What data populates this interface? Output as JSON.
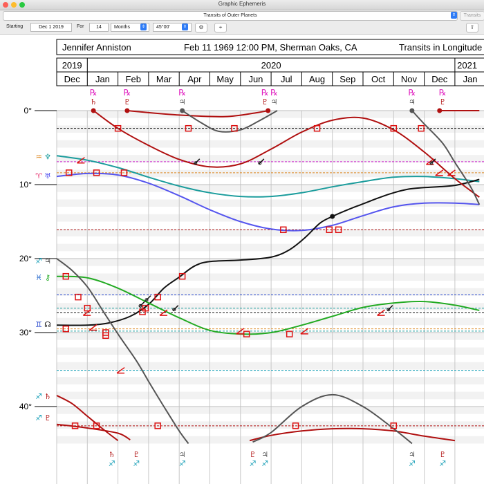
{
  "window": {
    "title": "Graphic Ephemeris",
    "selector_value": "Transits of Outer Planets",
    "transits_tab": "Transits"
  },
  "toolbar": {
    "starting_label": "Starting",
    "starting_value": "Dec 1 2019",
    "for_label": "For",
    "for_value": "14",
    "unit_value": "Months",
    "harmonic_value": "45°00'",
    "gear_icon": "gear-icon",
    "pin_icon": "location-pin-icon",
    "share_icon": "share-icon"
  },
  "header": {
    "name": "Jennifer Anniston",
    "birth": "Feb 11 1969 12:00 PM, Sherman Oaks, CA",
    "mode": "Transits in Longitude",
    "years": [
      "2019",
      "2020",
      "2021"
    ],
    "months": [
      "Dec",
      "Jan",
      "Feb",
      "Mar",
      "Apr",
      "May",
      "Jun",
      "Jul",
      "Aug",
      "Sep",
      "Oct",
      "Nov",
      "Dec",
      "Jan"
    ]
  },
  "chart_data": {
    "type": "line",
    "x": "months from Dec 1 2019",
    "xlim": [
      0,
      13.8
    ],
    "ylim": [
      0,
      45
    ],
    "y_ticks": [
      "0°",
      "10°",
      "20°",
      "30°",
      "40°"
    ],
    "y_tick_values": [
      0,
      10,
      20,
      30,
      40
    ],
    "colors": {
      "saturn": "#b01010",
      "pluto": "#b01010",
      "jupiter": "#555555",
      "node": "#111111",
      "neptune": "#1a9c9c",
      "uranus": "#5555ee",
      "chiron": "#22aa22",
      "aspect": "#dd1111",
      "sign_fire": "#e8417a",
      "sign_water": "#2266cc",
      "sign_earth": "#1aa0b8",
      "sign_air": "#dd8822",
      "rx_glyph": "#e020c0"
    },
    "left_labels": [
      {
        "y": 6.2,
        "sign": "♒",
        "planet": "♆",
        "sign_color": "#dd8822",
        "planet_color": "#1a9c9c"
      },
      {
        "y": 8.8,
        "sign": "♈",
        "planet": "♅",
        "sign_color": "#e8417a",
        "planet_color": "#5555ee"
      },
      {
        "y": 20.3,
        "sign": "♐",
        "planet": "♃",
        "sign_color": "#1aa0b8",
        "planet_color": "#555555"
      },
      {
        "y": 22.5,
        "sign": "♓",
        "planet": "⚷",
        "sign_color": "#2266cc",
        "planet_color": "#22aa22"
      },
      {
        "y": 28.9,
        "sign": "♊",
        "planet": "☊",
        "sign_color": "#2244cc",
        "planet_color": "#111111"
      },
      {
        "y": 38.6,
        "sign": "♐",
        "planet": "♄",
        "sign_color": "#1aa0b8",
        "planet_color": "#b01010"
      },
      {
        "y": 41.5,
        "sign": "♐",
        "planet": "♇",
        "sign_color": "#1aa0b8",
        "planet_color": "#b01010"
      }
    ],
    "natal_lines": [
      {
        "y": 2.4,
        "color": "#111111"
      },
      {
        "y": 6.9,
        "color": "#cc22cc"
      },
      {
        "y": 8.4,
        "color": "#dd8822"
      },
      {
        "y": 16.1,
        "color": "#b01010"
      },
      {
        "y": 24.9,
        "color": "#2244cc"
      },
      {
        "y": 26.7,
        "color": "#1a9c9c"
      },
      {
        "y": 27.3,
        "color": "#111111"
      },
      {
        "y": 29.5,
        "color": "#dd8822"
      },
      {
        "y": 29.8,
        "color": "#1a9c9c"
      },
      {
        "y": 35.1,
        "color": "#1aa0b8"
      },
      {
        "y": 42.6,
        "color": "#b01010"
      }
    ],
    "series": [
      {
        "name": "♆",
        "color": "#1a9c9c",
        "width": 2,
        "points": [
          [
            0,
            6.1
          ],
          [
            1,
            6.7
          ],
          [
            2,
            7.7
          ],
          [
            3,
            9.0
          ],
          [
            4,
            10.2
          ],
          [
            5,
            11.1
          ],
          [
            6,
            11.6
          ],
          [
            7,
            11.6
          ],
          [
            8,
            11.1
          ],
          [
            9,
            10.3
          ],
          [
            10,
            9.6
          ],
          [
            11,
            9.0
          ],
          [
            12,
            8.9
          ],
          [
            13,
            9.2
          ],
          [
            13.8,
            9.6
          ]
        ]
      },
      {
        "name": "♅",
        "color": "#5555ee",
        "width": 2,
        "points": [
          [
            0,
            8.9
          ],
          [
            1,
            8.5
          ],
          [
            2,
            8.7
          ],
          [
            3,
            9.8
          ],
          [
            4,
            11.5
          ],
          [
            5,
            13.4
          ],
          [
            6,
            15.0
          ],
          [
            7,
            16.0
          ],
          [
            8,
            16.2
          ],
          [
            9,
            15.5
          ],
          [
            10,
            14.2
          ],
          [
            11,
            13.0
          ],
          [
            12,
            12.5
          ],
          [
            13,
            12.5
          ],
          [
            13.8,
            12.7
          ]
        ]
      },
      {
        "name": "☊",
        "color": "#111111",
        "width": 2,
        "points": [
          [
            0,
            29.0
          ],
          [
            1,
            29.0
          ],
          [
            1.7,
            28.7
          ],
          [
            2.4,
            27.8
          ],
          [
            3,
            26.2
          ],
          [
            3.5,
            24.0
          ],
          [
            4,
            22.5
          ],
          [
            4.5,
            21.0
          ],
          [
            5,
            20.4
          ],
          [
            6,
            20.2
          ],
          [
            7,
            19.8
          ],
          [
            7.6,
            18.8
          ],
          [
            8.1,
            17.2
          ],
          [
            8.6,
            15.2
          ],
          [
            9,
            14.3
          ],
          [
            9.5,
            13.4
          ],
          [
            10,
            12.6
          ],
          [
            10.5,
            11.8
          ],
          [
            11,
            11.1
          ],
          [
            11.5,
            10.6
          ],
          [
            12,
            10.4
          ],
          [
            13,
            10.1
          ],
          [
            13.8,
            9.3
          ]
        ]
      },
      {
        "name": "⚷",
        "color": "#22aa22",
        "width": 2,
        "points": [
          [
            0,
            22.4
          ],
          [
            1,
            22.6
          ],
          [
            2,
            24.0
          ],
          [
            3,
            26.0
          ],
          [
            4,
            28.0
          ],
          [
            5,
            29.7
          ],
          [
            6,
            30.2
          ],
          [
            7,
            30.0
          ],
          [
            8,
            29.0
          ],
          [
            9,
            27.8
          ],
          [
            10,
            26.6
          ],
          [
            11,
            26.0
          ],
          [
            12,
            25.8
          ],
          [
            13,
            26.3
          ],
          [
            13.8,
            27.0
          ]
        ]
      },
      {
        "name": "♇",
        "color": "#b01010",
        "width": 2,
        "points": [
          [
            0,
            42.4
          ],
          [
            1,
            42.9
          ],
          [
            2,
            43.6
          ],
          [
            2.4,
            44.5
          ]
        ]
      },
      {
        "name": "♇",
        "color": "#b01010",
        "width": 2,
        "points": [
          [
            6.3,
            44.6
          ],
          [
            7,
            43.9
          ],
          [
            8,
            43.3
          ],
          [
            9,
            43.0
          ],
          [
            10,
            43.0
          ],
          [
            11,
            43.3
          ],
          [
            12,
            44.0
          ],
          [
            13,
            44.6
          ]
        ]
      },
      {
        "name": "♄",
        "color": "#b01010",
        "width": 2,
        "points": [
          [
            0,
            38.5
          ],
          [
            0.5,
            39.6
          ],
          [
            1,
            41.3
          ],
          [
            1.5,
            43.0
          ],
          [
            2.0,
            44.6
          ]
        ]
      },
      {
        "name": "♄",
        "color": "#b01010",
        "width": 2,
        "points": [
          [
            1.2,
            0.0
          ],
          [
            2,
            2.4
          ],
          [
            3,
            4.7
          ],
          [
            4,
            6.6
          ],
          [
            5,
            7.6
          ],
          [
            6,
            7.2
          ],
          [
            7,
            5.2
          ],
          [
            8,
            2.9
          ],
          [
            9,
            1.3
          ],
          [
            10,
            1.0
          ],
          [
            11,
            2.6
          ],
          [
            12,
            5.6
          ],
          [
            13,
            9.2
          ],
          [
            13.8,
            11.7
          ]
        ]
      },
      {
        "name": "♇",
        "color": "#b01010",
        "width": 2,
        "points": [
          [
            2.3,
            0.0
          ],
          [
            4,
            0.6
          ],
          [
            5.5,
            0.8
          ],
          [
            6.5,
            0.3
          ],
          [
            6.9,
            0.0
          ]
        ]
      },
      {
        "name": "♇",
        "color": "#b01010",
        "width": 2,
        "points": [
          [
            12.5,
            0.0
          ],
          [
            13,
            0.0
          ],
          [
            13.8,
            0.0
          ]
        ]
      },
      {
        "name": "♃",
        "color": "#555555",
        "width": 2,
        "points": [
          [
            4.1,
            0.0
          ],
          [
            4.7,
            1.6
          ],
          [
            5.3,
            2.8
          ],
          [
            6,
            2.6
          ],
          [
            6.6,
            1.4
          ],
          [
            7.2,
            0.0
          ]
        ]
      },
      {
        "name": "♃",
        "color": "#555555",
        "width": 2,
        "points": [
          [
            0,
            20.0
          ],
          [
            0.5,
            21.6
          ],
          [
            1,
            23.8
          ],
          [
            1.5,
            27.0
          ],
          [
            2,
            30.2
          ],
          [
            2.6,
            33.8
          ],
          [
            3,
            36.6
          ],
          [
            3.5,
            40.0
          ],
          [
            4,
            43.3
          ],
          [
            4.3,
            45.0
          ]
        ]
      },
      {
        "name": "♃",
        "color": "#555555",
        "width": 2,
        "points": [
          [
            6.4,
            44.8
          ],
          [
            7,
            43.5
          ],
          [
            8,
            40.0
          ],
          [
            9,
            38.4
          ],
          [
            10,
            40.0
          ],
          [
            11,
            43.0
          ],
          [
            11.6,
            45.0
          ]
        ]
      },
      {
        "name": "♃",
        "color": "#555555",
        "width": 2,
        "points": [
          [
            11.6,
            0.0
          ],
          [
            12,
            1.8
          ],
          [
            12.6,
            4.4
          ],
          [
            13,
            7.0
          ],
          [
            13.5,
            10.2
          ],
          [
            13.8,
            12.7
          ]
        ]
      }
    ],
    "markers": [
      {
        "x": 1.2,
        "y": 0,
        "kind": "dot",
        "color": "#b01010"
      },
      {
        "x": 2.3,
        "y": 0,
        "kind": "dot",
        "color": "#b01010"
      },
      {
        "x": 4.1,
        "y": 0,
        "kind": "dot",
        "color": "#555555"
      },
      {
        "x": 6.9,
        "y": 0,
        "kind": "dot",
        "color": "#b01010"
      },
      {
        "x": 11.6,
        "y": 0,
        "kind": "dot",
        "color": "#555555"
      },
      {
        "x": 12.5,
        "y": 0,
        "kind": "dot",
        "color": "#b01010"
      },
      {
        "x": 9.0,
        "y": 14.3,
        "kind": "dot",
        "color": "#111111"
      },
      {
        "x": 2,
        "y": 2.4,
        "kind": "square"
      },
      {
        "x": 4.3,
        "y": 2.4,
        "kind": "square"
      },
      {
        "x": 5.8,
        "y": 2.4,
        "kind": "square"
      },
      {
        "x": 8.5,
        "y": 2.4,
        "kind": "square"
      },
      {
        "x": 11,
        "y": 2.4,
        "kind": "square"
      },
      {
        "x": 11.9,
        "y": 2.4,
        "kind": "square"
      },
      {
        "x": 0.4,
        "y": 8.4,
        "kind": "square"
      },
      {
        "x": 1.3,
        "y": 8.4,
        "kind": "square"
      },
      {
        "x": 2.2,
        "y": 8.4,
        "kind": "square"
      },
      {
        "x": 7.4,
        "y": 16.1,
        "kind": "square"
      },
      {
        "x": 8.9,
        "y": 16.1,
        "kind": "square"
      },
      {
        "x": 9.2,
        "y": 16.1,
        "kind": "square"
      },
      {
        "x": 0.3,
        "y": 22.4,
        "kind": "square"
      },
      {
        "x": 4.1,
        "y": 22.4,
        "kind": "square"
      },
      {
        "x": 0.7,
        "y": 25.2,
        "kind": "square"
      },
      {
        "x": 3.3,
        "y": 25.2,
        "kind": "square"
      },
      {
        "x": 1.0,
        "y": 26.7,
        "kind": "square"
      },
      {
        "x": 2.9,
        "y": 26.7,
        "kind": "square"
      },
      {
        "x": 2.8,
        "y": 27.2,
        "kind": "square"
      },
      {
        "x": 0.3,
        "y": 29.5,
        "kind": "square"
      },
      {
        "x": 1.6,
        "y": 30.0,
        "kind": "square"
      },
      {
        "x": 1.6,
        "y": 30.4,
        "kind": "square"
      },
      {
        "x": 6.2,
        "y": 30.2,
        "kind": "square"
      },
      {
        "x": 7.6,
        "y": 30.2,
        "kind": "square"
      },
      {
        "x": 0.6,
        "y": 42.6,
        "kind": "square"
      },
      {
        "x": 1.3,
        "y": 42.6,
        "kind": "square"
      },
      {
        "x": 3.3,
        "y": 42.6,
        "kind": "square"
      },
      {
        "x": 7.8,
        "y": 42.6,
        "kind": "square"
      },
      {
        "x": 11.0,
        "y": 42.6,
        "kind": "square"
      },
      {
        "x": 0.8,
        "y": 6.7,
        "kind": "semisq"
      },
      {
        "x": 1.2,
        "y": 29.3,
        "kind": "semisq"
      },
      {
        "x": 1.0,
        "y": 27.3,
        "kind": "semisq"
      },
      {
        "x": 2.1,
        "y": 35.1,
        "kind": "semisq"
      },
      {
        "x": 3.5,
        "y": 27.3,
        "kind": "semisq"
      },
      {
        "x": 6.0,
        "y": 29.8,
        "kind": "semisq"
      },
      {
        "x": 8.1,
        "y": 29.8,
        "kind": "semisq"
      },
      {
        "x": 10.6,
        "y": 27.3,
        "kind": "semisq"
      },
      {
        "x": 12.5,
        "y": 8.4,
        "kind": "semisq"
      },
      {
        "x": 12.9,
        "y": 8.4,
        "kind": "semisq"
      },
      {
        "x": 12.2,
        "y": 6.9,
        "kind": "semisq"
      },
      {
        "x": 2.8,
        "y": 26.2,
        "kind": "sesq"
      },
      {
        "x": 3.0,
        "y": 25.4,
        "kind": "sesq"
      },
      {
        "x": 3.9,
        "y": 26.7,
        "kind": "sesq"
      },
      {
        "x": 10.9,
        "y": 26.7,
        "kind": "sesq"
      },
      {
        "x": 4.6,
        "y": 6.9,
        "kind": "sesq"
      },
      {
        "x": 6.7,
        "y": 6.9,
        "kind": "sesq"
      },
      {
        "x": 12.3,
        "y": 6.9,
        "kind": "sesq"
      }
    ],
    "top_glyphs": [
      {
        "x": 1.2,
        "rx": "℞",
        "planet": "♄",
        "color": "#b01010"
      },
      {
        "x": 2.3,
        "rx": "℞",
        "planet": "♇",
        "color": "#b01010"
      },
      {
        "x": 4.1,
        "rx": "℞",
        "planet": "♃",
        "color": "#555555"
      },
      {
        "x": 6.8,
        "rx": "℞",
        "planet": "♇",
        "color": "#b01010"
      },
      {
        "x": 7.1,
        "rx": "℞",
        "planet": "♃",
        "color": "#555555"
      },
      {
        "x": 11.6,
        "rx": "℞",
        "planet": "♃",
        "color": "#555555"
      },
      {
        "x": 12.6,
        "rx": "℞",
        "planet": "♇",
        "color": "#b01010"
      }
    ],
    "bottom_glyphs": [
      {
        "x": 1.8,
        "planet": "♄",
        "color": "#b01010"
      },
      {
        "x": 2.6,
        "planet": "♇",
        "color": "#b01010"
      },
      {
        "x": 4.1,
        "planet": "♃",
        "color": "#555555"
      },
      {
        "x": 6.4,
        "planet": "♇",
        "color": "#b01010"
      },
      {
        "x": 6.8,
        "planet": "♃",
        "color": "#555555"
      },
      {
        "x": 11.6,
        "planet": "♃",
        "color": "#555555"
      },
      {
        "x": 12.6,
        "planet": "♇",
        "color": "#b01010"
      }
    ]
  }
}
